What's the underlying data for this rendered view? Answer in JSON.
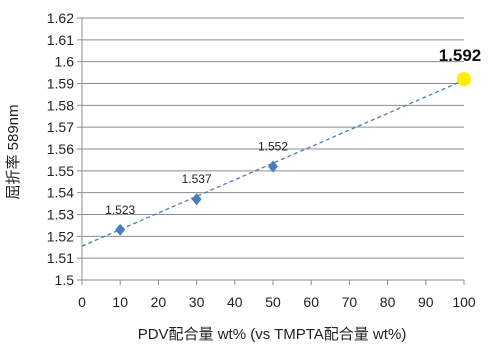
{
  "chart_data": {
    "type": "scatter",
    "title": "",
    "xlabel": "PDV配合量 wt% (vs TMPTA配合量 wt%)",
    "ylabel": "屈折率 589nm",
    "xlim": [
      0,
      100
    ],
    "ylim": [
      1.5,
      1.62
    ],
    "x_ticks": [
      "0",
      "10",
      "20",
      "30",
      "40",
      "50",
      "60",
      "70",
      "80",
      "90",
      "100"
    ],
    "y_ticks": [
      "1.5",
      "1.51",
      "1.52",
      "1.53",
      "1.54",
      "1.55",
      "1.56",
      "1.57",
      "1.58",
      "1.59",
      "1.6",
      "1.61",
      "1.62"
    ],
    "grid": "horizontal",
    "series": [
      {
        "marker": "diamond",
        "color": "#4a7ebb",
        "points": [
          {
            "x": 10,
            "y": 1.523,
            "label": "1.523"
          },
          {
            "x": 30,
            "y": 1.537,
            "label": "1.537"
          },
          {
            "x": 50,
            "y": 1.552,
            "label": "1.552"
          }
        ]
      },
      {
        "marker": "circle",
        "color": "#ffee00",
        "points": [
          {
            "x": 100,
            "y": 1.592,
            "label": "1.592"
          }
        ]
      }
    ],
    "trendline": {
      "style": "dashed",
      "color": "#4a7ebb",
      "x": [
        0,
        100
      ],
      "y": [
        1.5155,
        1.5915
      ]
    }
  }
}
